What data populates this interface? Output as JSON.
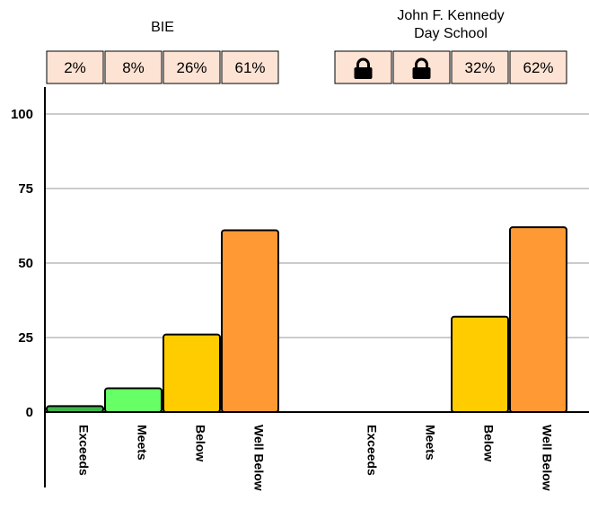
{
  "chart_data": {
    "type": "bar",
    "ylim": [
      0,
      100
    ],
    "yticks": [
      "0",
      "25",
      "50",
      "75",
      "100"
    ],
    "grid": true,
    "colors": {
      "Exceeds": "#3cb44b",
      "Meets": "#66ff66",
      "Below": "#ffcc00",
      "Well Below": "#ff9933",
      "pct_box_fill": "#fde3d4"
    },
    "groups": [
      {
        "title": "BIE",
        "categories": [
          "Exceeds",
          "Meets",
          "Below",
          "Well Below"
        ],
        "values": [
          2,
          8,
          26,
          61
        ],
        "labels": [
          "2%",
          "8%",
          "26%",
          "61%"
        ],
        "locked": [
          false,
          false,
          false,
          false
        ]
      },
      {
        "title": "John F. Kennedy\nDay School",
        "categories": [
          "Exceeds",
          "Meets",
          "Below",
          "Well Below"
        ],
        "values": [
          null,
          null,
          32,
          62
        ],
        "labels": [
          "",
          "",
          "32%",
          "62%"
        ],
        "locked": [
          true,
          true,
          false,
          false
        ],
        "locked_icon": "lock-icon"
      }
    ]
  }
}
